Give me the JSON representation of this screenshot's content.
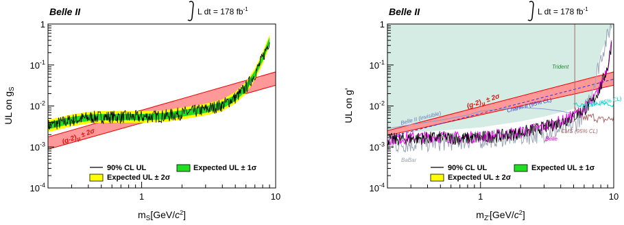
{
  "chart_data": [
    {
      "type": "line",
      "experiment_label": "Belle II",
      "lumi_text": "L dt = 178 fb",
      "lumi_superscript": "-1",
      "xlabel": "m",
      "xlabel_sub": "S",
      "xlabel_units": "[GeV/",
      "xlabel_c": "c",
      "xlabel_sup": "2",
      "xlabel_close": "]",
      "ylabel": "UL on g",
      "ylabel_sub": "S",
      "xscale": "log",
      "yscale": "log",
      "xlim": [
        0.2,
        10
      ],
      "ylim": [
        0.0001,
        1
      ],
      "x_ticks": [
        {
          "v": 1,
          "label": "1"
        },
        {
          "v": 10,
          "label": "10"
        }
      ],
      "y_ticks": [
        {
          "v": 0.0001,
          "base": "10",
          "exp": "-4"
        },
        {
          "v": 0.001,
          "base": "10",
          "exp": "-3"
        },
        {
          "v": 0.01,
          "base": "10",
          "exp": "-2"
        },
        {
          "v": 0.1,
          "base": "10",
          "exp": "-1"
        },
        {
          "v": 1,
          "base": "1",
          "exp": ""
        }
      ],
      "legend": {
        "obs": "90% CL UL",
        "exp1": "Expected UL ± 1σ",
        "exp2": "Expected UL ± 2σ"
      },
      "band_label": "(g-2)",
      "band_label_sub": "μ",
      "band_label_tail": " ± 2σ",
      "colors": {
        "obs": "#000000",
        "exp1": "#22dd22",
        "exp2": "#ffff00",
        "gm2_fill": "#ff9999",
        "gm2_line": "#ee0000"
      },
      "gm2_band": {
        "x": [
          0.2,
          10
        ],
        "lower": [
          0.00088,
          0.032
        ],
        "upper": [
          0.00175,
          0.068
        ]
      },
      "expected_band": {
        "x": [
          0.2,
          0.3,
          0.4,
          0.5,
          0.7,
          1.0,
          1.5,
          2.0,
          3.0,
          4.0,
          5.0,
          6.0,
          7.0,
          8.0,
          9.0
        ],
        "median": [
          0.0033,
          0.0045,
          0.0052,
          0.0054,
          0.0054,
          0.0054,
          0.0057,
          0.0066,
          0.0082,
          0.0105,
          0.016,
          0.028,
          0.06,
          0.15,
          0.4
        ],
        "lo1": [
          0.0027,
          0.0037,
          0.0043,
          0.0045,
          0.0045,
          0.0045,
          0.0047,
          0.0055,
          0.0068,
          0.0087,
          0.0132,
          0.023,
          0.05,
          0.125,
          0.33
        ],
        "hi1": [
          0.004,
          0.0054,
          0.0062,
          0.0064,
          0.0064,
          0.0064,
          0.0068,
          0.0079,
          0.0098,
          0.0125,
          0.019,
          0.034,
          0.072,
          0.18,
          0.48
        ],
        "lo2": [
          0.0023,
          0.0032,
          0.0037,
          0.0039,
          0.0039,
          0.0039,
          0.0041,
          0.0047,
          0.0059,
          0.0075,
          0.0115,
          0.02,
          0.043,
          0.108,
          0.29
        ],
        "hi2": [
          0.0046,
          0.0062,
          0.0072,
          0.0075,
          0.0075,
          0.0075,
          0.0079,
          0.0092,
          0.0114,
          0.0146,
          0.022,
          0.039,
          0.083,
          0.21,
          0.55
        ]
      }
    },
    {
      "type": "line",
      "experiment_label": "Belle II",
      "lumi_text": "L dt = 178 fb",
      "lumi_superscript": "-1",
      "xlabel": "m",
      "xlabel_sub": "Z'",
      "xlabel_units": "[GeV/",
      "xlabel_c": "c",
      "xlabel_sup": "2",
      "xlabel_close": "]",
      "ylabel": "UL on g'",
      "ylabel_sub": "",
      "xscale": "log",
      "yscale": "log",
      "xlim": [
        0.2,
        10
      ],
      "ylim": [
        0.0001,
        1
      ],
      "x_ticks": [
        {
          "v": 1,
          "label": "1"
        },
        {
          "v": 10,
          "label": "10"
        }
      ],
      "y_ticks": [
        {
          "v": 0.0001,
          "base": "10",
          "exp": "-4"
        },
        {
          "v": 0.001,
          "base": "10",
          "exp": "-3"
        },
        {
          "v": 0.01,
          "base": "10",
          "exp": "-2"
        },
        {
          "v": 0.1,
          "base": "10",
          "exp": "-1"
        },
        {
          "v": 1,
          "base": "1",
          "exp": ""
        }
      ],
      "legend": {
        "obs": "90% CL UL",
        "exp1": "Expected UL ± 1σ",
        "exp2": "Expected UL ± 2σ"
      },
      "band_label": "(g-2)",
      "band_label_sub": "μ",
      "band_label_tail": " ± 2σ",
      "annotations": {
        "trident": "Trident",
        "belle2_invisible": "Belle II (invisible)",
        "charm2": "Charm-II (95% CL)",
        "ccfr": "CCFR (95% CL)",
        "cms": "CMS (95% CL)",
        "belle": "Belle",
        "babar": "BaBar"
      },
      "colors": {
        "obs": "#000000",
        "exp1": "#22dd22",
        "exp2": "#ffff00",
        "gm2_fill": "#ff9999",
        "gm2_line": "#ee0000",
        "trident_fill": "#d5ece4",
        "trident_text": "#228833",
        "belle2inv": "#8899cc",
        "charm2": "#3333cc",
        "ccfr": "#00dddd",
        "cms": "#aa6666",
        "belle": "#ff00ff",
        "babar": "#9aa5b5"
      },
      "gm2_band": {
        "x": [
          0.2,
          10
        ],
        "lower": [
          0.0019,
          0.032
        ],
        "upper": [
          0.0025,
          0.068
        ]
      },
      "observed": {
        "x": [
          0.2,
          0.3,
          0.5,
          0.7,
          1.0,
          1.5,
          2.0,
          3.0,
          4.0,
          5.0,
          6.0,
          7.0,
          8.0,
          9.0,
          9.6
        ],
        "value": [
          0.0015,
          0.0016,
          0.0017,
          0.0016,
          0.0017,
          0.0019,
          0.0022,
          0.003,
          0.004,
          0.0055,
          0.008,
          0.013,
          0.03,
          0.09,
          0.3
        ]
      },
      "babar": {
        "x": [
          0.2,
          0.3,
          0.5,
          0.7,
          1.0,
          1.5,
          2.0,
          3.0,
          4.0,
          5.0,
          6.0,
          7.0,
          8.0,
          9.0,
          9.6
        ],
        "value": [
          0.0011,
          0.0012,
          0.0013,
          0.0014,
          0.0015,
          0.0017,
          0.0018,
          0.0021,
          0.0026,
          0.0032,
          0.007,
          0.03,
          0.15,
          0.5,
          1.0
        ]
      },
      "belle2_invisible": {
        "x": [
          0.2,
          0.3,
          0.5,
          0.8,
          1.0,
          1.5,
          2.0,
          3.0,
          4.0,
          5.0
        ],
        "value": [
          0.0028,
          0.0035,
          0.0045,
          0.006,
          0.0075,
          0.0085,
          0.0092,
          0.0085,
          0.0075,
          0.0065
        ]
      }
    }
  ]
}
